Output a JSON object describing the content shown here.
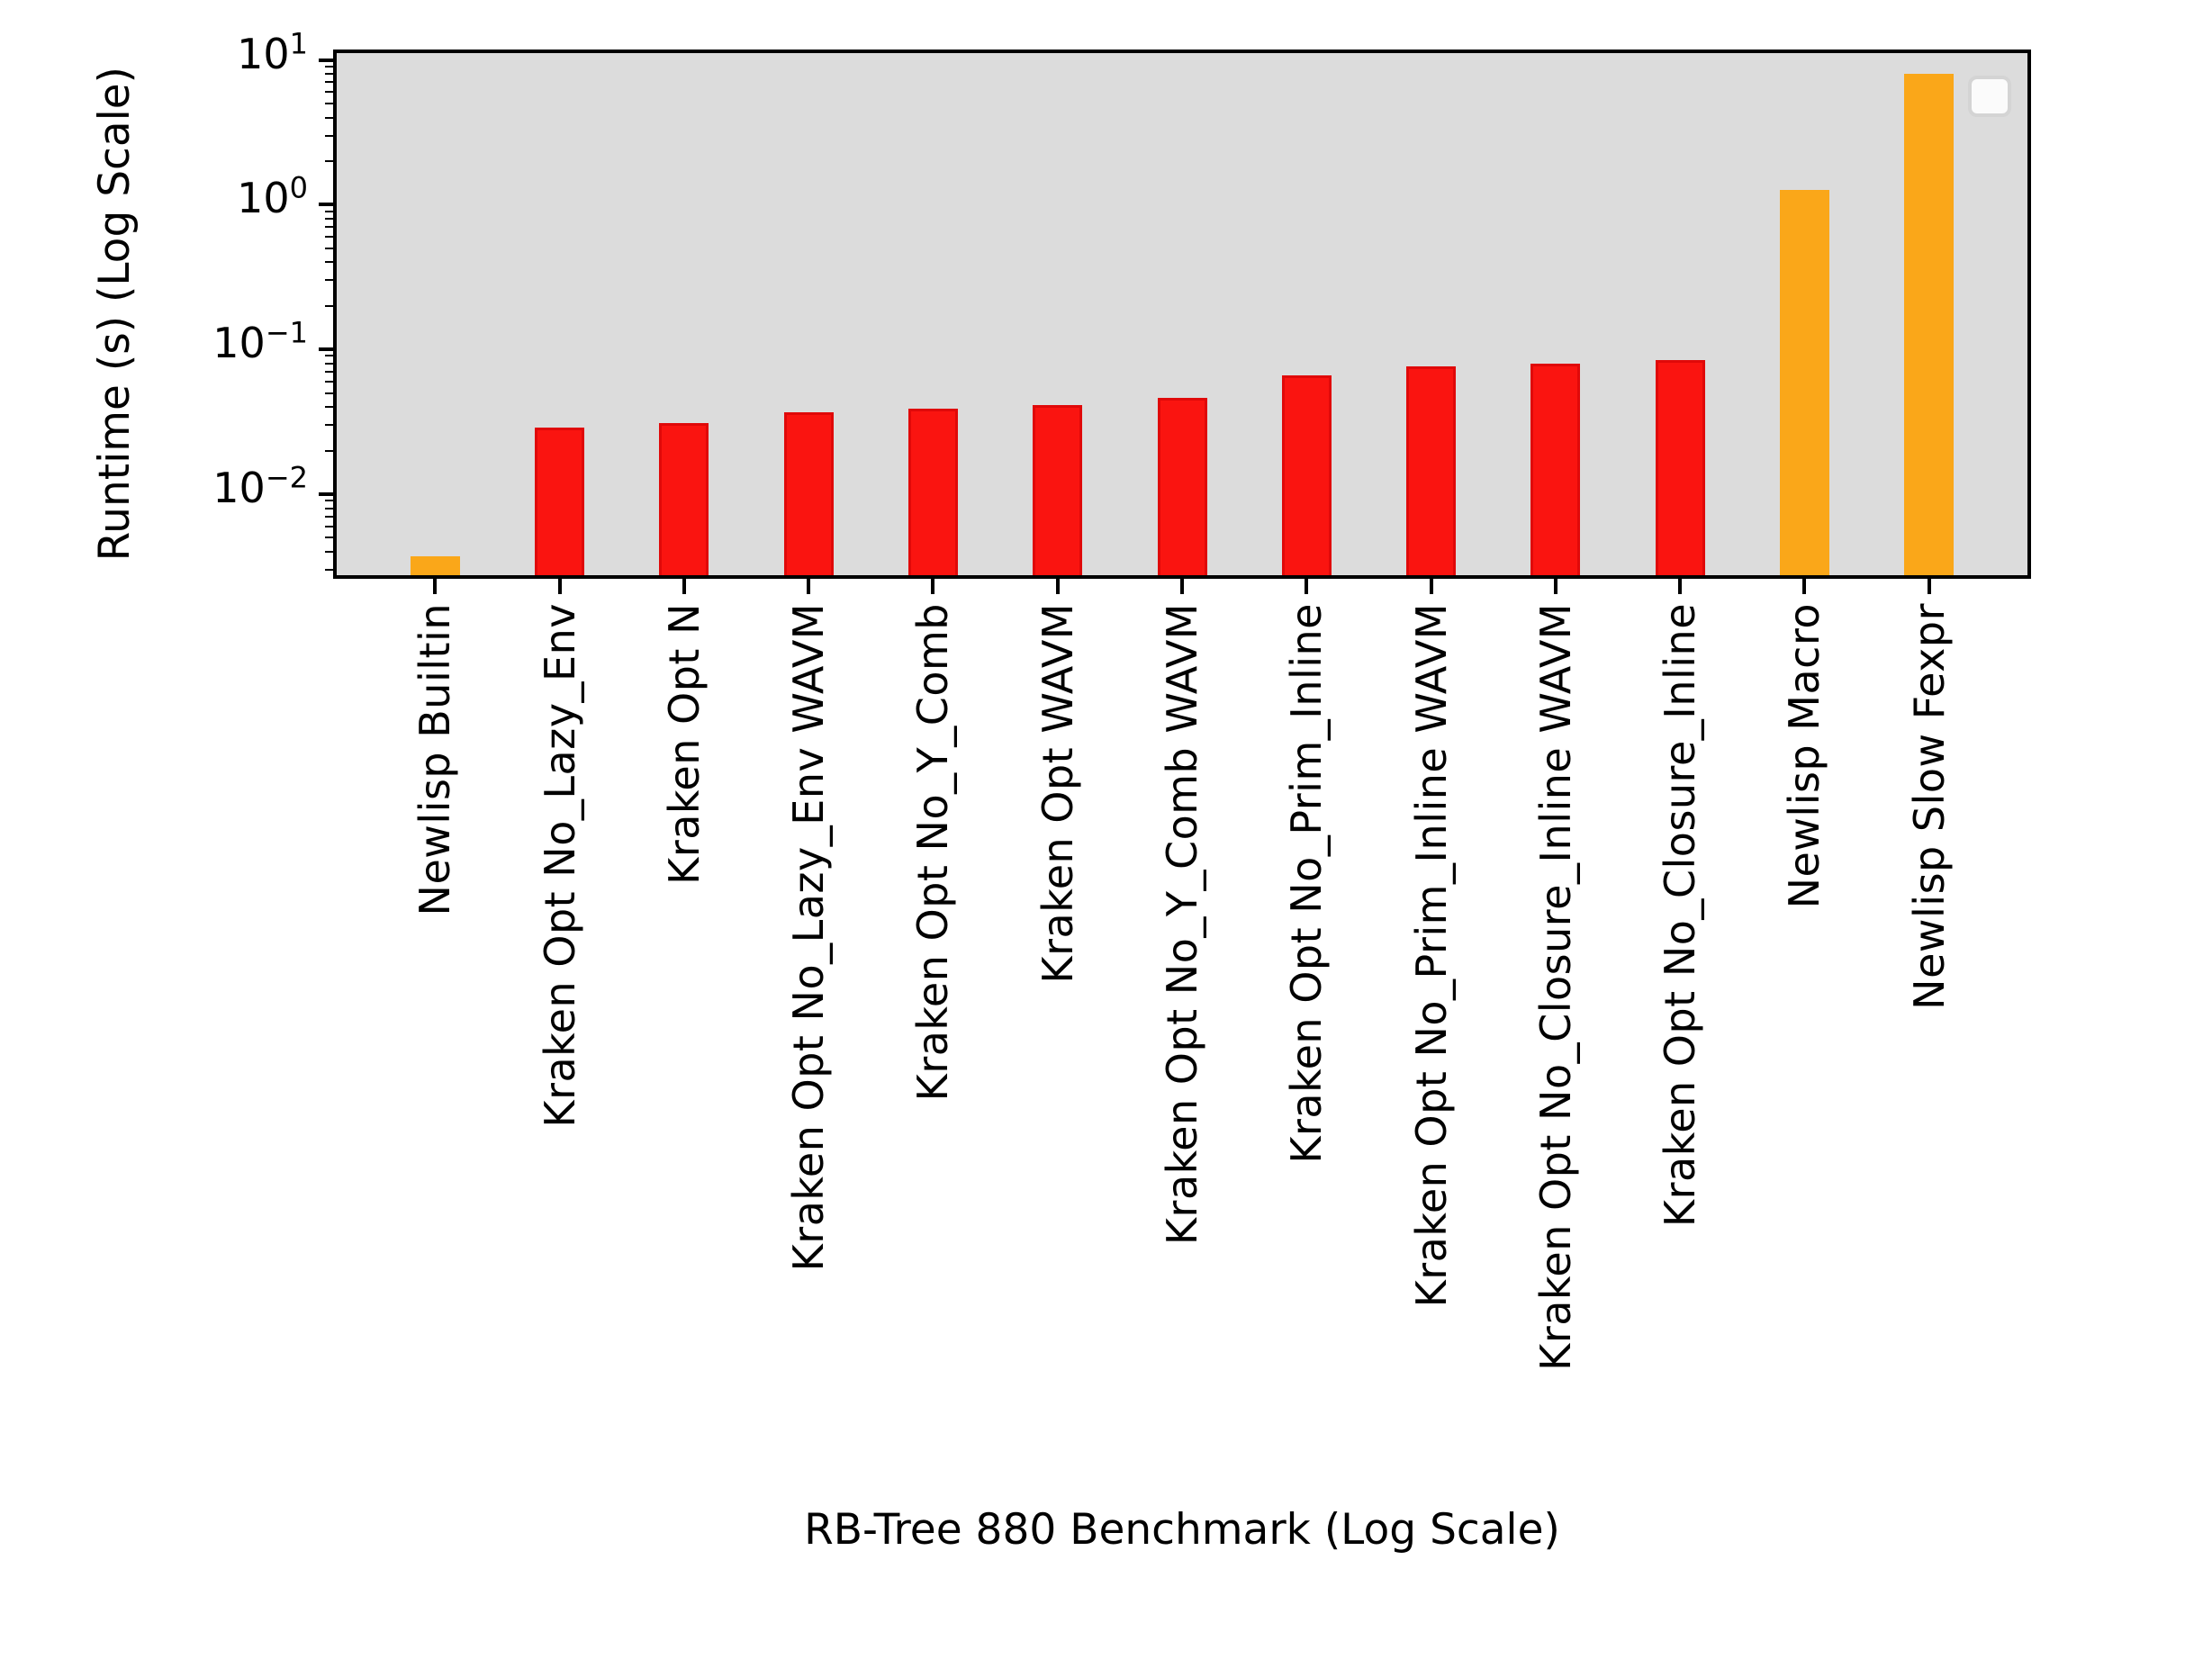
{
  "figure": {
    "background": "#ffffff",
    "plot_background": "#dcdcdc",
    "frame_color": "#000000"
  },
  "axes": {
    "x_title": "RB-Tree 880 Benchmark (Log Scale)",
    "y_title": "Runtime (s) (Log Scale)"
  },
  "legend": {
    "visible": true,
    "entries": []
  },
  "chart_data": {
    "type": "bar",
    "title": "",
    "xlabel": "RB-Tree 880 Benchmark (Log Scale)",
    "ylabel": "Runtime (s) (Log Scale)",
    "y_scale": "log",
    "grid": false,
    "legend_position": "upper-right-empty",
    "categories": [
      "Newlisp Builtin",
      "Kraken Opt No_Lazy_Env",
      "Kraken Opt N",
      "Kraken Opt No_Lazy_Env WAVM",
      "Kraken Opt No_Y_Comb",
      "Kraken Opt WAVM",
      "Kraken Opt No_Y_Comb WAVM",
      "Kraken Opt No_Prim_Inline",
      "Kraken Opt No_Prim_Inline WAVM",
      "Kraken Opt No_Closure_Inline WAVM",
      "Kraken Opt No_Closure_Inline",
      "Newlisp Macro",
      "Newlisp Slow Fexpr"
    ],
    "values": [
      0.0037,
      0.029,
      0.031,
      0.037,
      0.039,
      0.041,
      0.046,
      0.066,
      0.076,
      0.08,
      0.084,
      1.26,
      8.0
    ],
    "bar_colors": [
      "orange",
      "red",
      "red",
      "red",
      "red",
      "red",
      "red",
      "red",
      "red",
      "red",
      "red",
      "orange",
      "orange"
    ],
    "palette": {
      "red_fill": "#fa1410",
      "red_edge": "#e00909",
      "orange_fill": "#faa719",
      "orange_edge": "#faa719"
    },
    "ylim": [
      0.0026,
      11.8
    ],
    "y_major_tick_exponents": [
      1,
      0,
      -1,
      -2
    ],
    "xlim": [
      -0.82,
      12.82
    ],
    "bar_width_fraction": 0.4
  }
}
